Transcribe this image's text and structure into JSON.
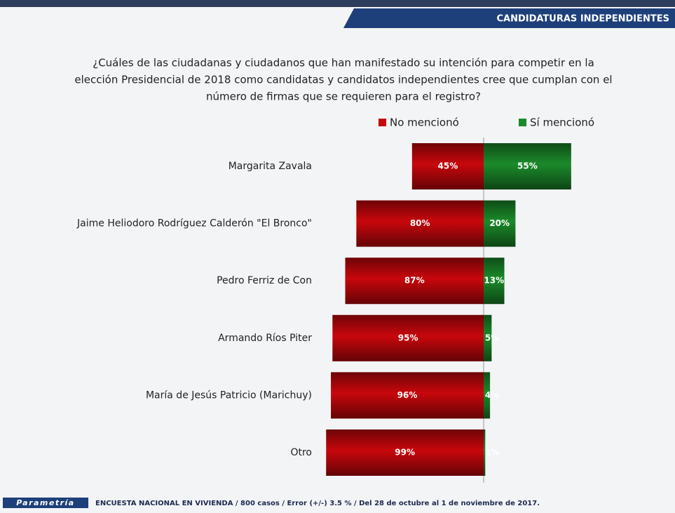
{
  "header": {
    "section": "CANDIDATURAS INDEPENDIENTES"
  },
  "chart_data": {
    "type": "diverging-bar",
    "title": [
      "¿Cuáles de las ciudadanas y ciudadanos que han manifestado su intención para competir en la",
      "elección Presidencial de 2018 como candidatas y candidatos independientes cree que cumplan con el",
      "número de firmas que se requieren para el registro?"
    ],
    "categories": [
      "Margarita Zavala",
      "Jaime Heliodoro Rodríguez Calderón  \"El Bronco\"",
      "Pedro Ferriz de Con",
      "Armando Ríos Piter",
      "María de Jesús Patricio (Marichuy)",
      "Otro"
    ],
    "series": [
      {
        "name": "No mencionó",
        "color": "#c8070c",
        "values": [
          45,
          80,
          87,
          95,
          96,
          99
        ],
        "value_labels": [
          "45%",
          "80%",
          "87%",
          "95%",
          "96%",
          "99%"
        ]
      },
      {
        "name": "Sí mencionó",
        "color": "#1b8a2a",
        "values": [
          55,
          20,
          13,
          5,
          4,
          1
        ],
        "value_labels": [
          "55%",
          "20%",
          "13%",
          "5%",
          "4%",
          "1%"
        ]
      }
    ]
  },
  "footer": {
    "logo": "Parametría",
    "note": "ENCUESTA NACIONAL EN VIVIENDA / 800 casos / Error (+/-) 3.5 % / Del 28 de octubre al 1 de noviembre de 2017."
  }
}
